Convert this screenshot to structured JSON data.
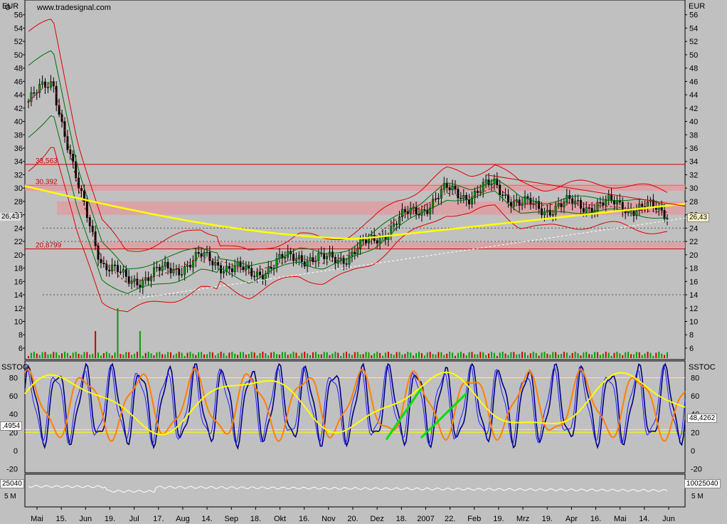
{
  "header": {
    "source": "www.tradesignal.com",
    "currency_left": "EUR",
    "currency_right": "EUR"
  },
  "price_panel": {
    "ticks": [
      56,
      54,
      52,
      50,
      48,
      46,
      44,
      42,
      40,
      38,
      36,
      34,
      32,
      30,
      28,
      26,
      24,
      22,
      20,
      18,
      16,
      14,
      12,
      10,
      8,
      6
    ],
    "ymin": 4.5,
    "ymax": 58,
    "last_value": "26,43",
    "levels": [
      {
        "label": "33,563",
        "value": 33.563
      },
      {
        "label": "30,392",
        "value": 30.392
      },
      {
        "label": "20,8799",
        "value": 20.8799
      }
    ],
    "bands": [
      [
        29.6,
        30.6
      ],
      [
        26.0,
        28.0
      ],
      [
        21.0,
        21.9
      ]
    ],
    "dotted_lines": [
      24.0,
      22.0,
      14.0
    ]
  },
  "oscillator_panel": {
    "name": "SSTOC",
    "ticks": [
      80,
      60,
      40,
      20,
      0,
      -20
    ],
    "ymin": -22,
    "ymax": 96,
    "hlines": [
      80,
      20,
      23
    ],
    "last_value": "48,4262",
    "left_value": ",4954"
  },
  "volume_panel": {
    "left_value": "25040",
    "left_label": "5 M",
    "right_value": "10025040",
    "right_label": "5 M"
  },
  "x_axis": {
    "labels": [
      "Mai",
      "15.",
      "Jun",
      "19.",
      "Jul",
      "17.",
      "Aug",
      "14.",
      "Sep",
      "18.",
      "Okt",
      "16.",
      "Nov",
      "20.",
      "Dez",
      "18.",
      "2007",
      "22.",
      "Feb",
      "19.",
      "Mrz",
      "19.",
      "Apr",
      "16.",
      "Mai",
      "14.",
      "Jun"
    ]
  },
  "chart_data": {
    "type": "line",
    "title": "",
    "series": [
      {
        "name": "",
        "x": [
          "2006-05",
          "2006-05-15",
          "2006-06",
          "2006-06-19",
          "2006-07",
          "2006-07-17",
          "2006-08",
          "2006-08-14",
          "2006-09",
          "2006-09-18",
          "2006-10",
          "2006-10-16",
          "2006-11",
          "2006-11-20",
          "2006-12",
          "2006-12-18",
          "2007-01",
          "2007-01-22",
          "2007-02",
          "2007-02-19",
          "2007-03",
          "2007-03-19",
          "2007-04",
          "2007-04-16",
          "2007-05",
          "2007-05-14",
          "2007-06"
        ],
        "values": [
          43,
          46,
          30,
          19,
          16,
          17,
          18,
          19.5,
          18.5,
          17,
          18.5,
          20,
          19,
          20,
          22,
          25,
          27,
          29.5,
          29,
          30.5,
          27.5,
          27,
          27.5,
          27.5,
          27.5,
          27,
          26.43
        ]
      },
      {
        "name": "SSTOC",
        "x": [
          "2006-05",
          "2006-06",
          "2006-07",
          "2006-08",
          "2006-09",
          "2006-10",
          "2006-11",
          "2006-12",
          "2007-01",
          "2007-02",
          "2007-03",
          "2007-04",
          "2007-05",
          "2007-06"
        ],
        "values": [
          85,
          20,
          15,
          80,
          30,
          85,
          20,
          80,
          75,
          85,
          25,
          35,
          70,
          48.43
        ]
      }
    ]
  }
}
